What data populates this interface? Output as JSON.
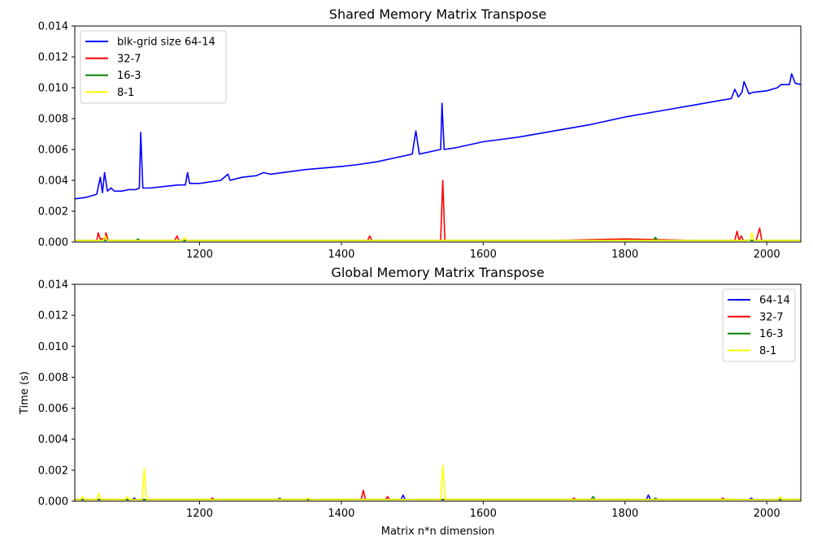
{
  "chart_data": [
    {
      "type": "line",
      "title": "Shared Memory Matrix Transpose",
      "xlabel": "",
      "ylabel": "",
      "xlim": [
        1024,
        2048
      ],
      "ylim": [
        0,
        0.014
      ],
      "xticks": [
        "1200",
        "1400",
        "1600",
        "1800",
        "2000"
      ],
      "yticks": [
        "0.000",
        "0.002",
        "0.004",
        "0.006",
        "0.008",
        "0.010",
        "0.012",
        "0.014"
      ],
      "grid": false,
      "legend_position": "upper left",
      "series": [
        {
          "name": "blk-grid size 64-14",
          "color": "#0000ff",
          "x": [
            1024,
            1040,
            1055,
            1060,
            1063,
            1066,
            1070,
            1075,
            1080,
            1090,
            1100,
            1110,
            1115,
            1117,
            1120,
            1130,
            1150,
            1170,
            1180,
            1183,
            1186,
            1200,
            1230,
            1240,
            1243,
            1260,
            1280,
            1290,
            1300,
            1350,
            1400,
            1420,
            1450,
            1480,
            1500,
            1505,
            1510,
            1530,
            1540,
            1542,
            1545,
            1560,
            1600,
            1650,
            1700,
            1750,
            1800,
            1850,
            1900,
            1950,
            1955,
            1960,
            1965,
            1968,
            1975,
            1980,
            2000,
            2015,
            2020,
            2032,
            2035,
            2040,
            2048
          ],
          "y": [
            0.0028,
            0.0029,
            0.0031,
            0.0042,
            0.0032,
            0.0045,
            0.0033,
            0.0035,
            0.0033,
            0.0033,
            0.0034,
            0.0034,
            0.0035,
            0.0071,
            0.0035,
            0.0035,
            0.0036,
            0.0037,
            0.0037,
            0.0045,
            0.0038,
            0.0038,
            0.004,
            0.0044,
            0.004,
            0.0042,
            0.0043,
            0.0045,
            0.0044,
            0.0047,
            0.0049,
            0.005,
            0.0052,
            0.0055,
            0.0057,
            0.0072,
            0.0057,
            0.0059,
            0.006,
            0.009,
            0.006,
            0.0061,
            0.0065,
            0.0068,
            0.0072,
            0.0076,
            0.0081,
            0.0085,
            0.0089,
            0.0093,
            0.0099,
            0.0094,
            0.0097,
            0.0104,
            0.0096,
            0.0097,
            0.0098,
            0.01,
            0.0102,
            0.0102,
            0.0109,
            0.0103,
            0.0102
          ]
        },
        {
          "name": "32-7",
          "color": "#ff0000",
          "x": [
            1024,
            1055,
            1057,
            1060,
            1066,
            1068,
            1071,
            1100,
            1165,
            1168,
            1171,
            1200,
            1300,
            1400,
            1437,
            1440,
            1443,
            1500,
            1540,
            1543,
            1546,
            1600,
            1700,
            1800,
            1900,
            1955,
            1958,
            1961,
            1964,
            1967,
            1985,
            1990,
            1993,
            2000,
            2048
          ],
          "y": [
            0.0001,
            0.0001,
            0.0006,
            0.0002,
            0.0002,
            0.0006,
            0.0001,
            0.0001,
            0.0001,
            0.0004,
            0.0001,
            0.0001,
            0.0001,
            0.0001,
            0.0001,
            0.0004,
            0.0001,
            0.0001,
            0.0001,
            0.004,
            0.0001,
            0.0001,
            0.0001,
            0.0002,
            0.0001,
            0.0001,
            0.0007,
            0.0001,
            0.0004,
            0.0001,
            0.0001,
            0.0009,
            0.0001,
            0.0001,
            0.0001
          ]
        },
        {
          "name": "16-3",
          "color": "#008000",
          "x": [
            1024,
            1110,
            1113,
            1116,
            1300,
            1500,
            1700,
            1840,
            1843,
            1846,
            1900,
            2048
          ],
          "y": [
            0.0001,
            0.0001,
            0.0002,
            0.0001,
            0.0001,
            0.0001,
            0.0001,
            0.0001,
            0.0003,
            0.0001,
            0.0001,
            0.0001
          ]
        },
        {
          "name": "8-1",
          "color": "#ffff00",
          "x": [
            1024,
            1064,
            1067,
            1070,
            1176,
            1179,
            1182,
            1300,
            1500,
            1976,
            1979,
            1982,
            2048
          ],
          "y": [
            0.0001,
            0.0001,
            0.0004,
            0.0001,
            0.0001,
            0.0003,
            0.0001,
            0.0001,
            0.0001,
            0.0001,
            0.0006,
            0.0001,
            0.0001
          ]
        }
      ]
    },
    {
      "type": "line",
      "title": "Global Memory Matrix Transpose",
      "xlabel": "Matrix n*n dimension",
      "ylabel": "Time (s)",
      "xlim": [
        1024,
        2048
      ],
      "ylim": [
        0,
        0.014
      ],
      "xticks": [
        "1200",
        "1400",
        "1600",
        "1800",
        "2000"
      ],
      "yticks": [
        "0.000",
        "0.002",
        "0.004",
        "0.006",
        "0.008",
        "0.010",
        "0.012",
        "0.014"
      ],
      "grid": false,
      "legend_position": "upper right",
      "series": [
        {
          "name": "64-14",
          "color": "#0000ff",
          "x": [
            1024,
            1105,
            1108,
            1111,
            1484,
            1487,
            1490,
            1830,
            1833,
            1836,
            1975,
            1978,
            1981,
            2048
          ],
          "y": [
            0.0001,
            0.0001,
            0.0002,
            0.0001,
            0.0001,
            0.0004,
            0.0001,
            0.0001,
            0.0004,
            0.0001,
            0.0001,
            0.0002,
            0.0001,
            0.0001
          ]
        },
        {
          "name": "32-7",
          "color": "#ff0000",
          "x": [
            1024,
            1215,
            1218,
            1221,
            1428,
            1431,
            1434,
            1462,
            1465,
            1468,
            1725,
            1728,
            1731,
            1935,
            1938,
            1941,
            2048
          ],
          "y": [
            0.0001,
            0.0001,
            0.0002,
            0.0001,
            0.0001,
            0.0007,
            0.0001,
            0.0001,
            0.0003,
            0.0001,
            0.0001,
            0.0002,
            0.0001,
            0.0001,
            0.0002,
            0.0001,
            0.0001
          ]
        },
        {
          "name": "16-3",
          "color": "#008000",
          "x": [
            1024,
            1310,
            1313,
            1316,
            1752,
            1755,
            1758,
            1840,
            1843,
            1846,
            2048
          ],
          "y": [
            0.0001,
            0.0001,
            0.0002,
            0.0001,
            0.0001,
            0.0003,
            0.0001,
            0.0001,
            0.0002,
            0.0001,
            0.0001
          ]
        },
        {
          "name": "8-1",
          "color": "#ffff00",
          "x": [
            1024,
            1032,
            1035,
            1038,
            1055,
            1058,
            1061,
            1095,
            1098,
            1101,
            1119,
            1122,
            1125,
            1350,
            1353,
            1356,
            1540,
            1543,
            1546,
            2016,
            2019,
            2022,
            2048
          ],
          "y": [
            0.0001,
            0.0001,
            0.0003,
            0.0001,
            0.0001,
            0.0005,
            0.0001,
            0.0001,
            0.0003,
            0.0001,
            0.0001,
            0.0021,
            0.0001,
            0.0001,
            0.0002,
            0.0001,
            0.0001,
            0.0023,
            0.0001,
            0.0001,
            0.0003,
            0.0001,
            0.0001
          ]
        }
      ]
    }
  ]
}
